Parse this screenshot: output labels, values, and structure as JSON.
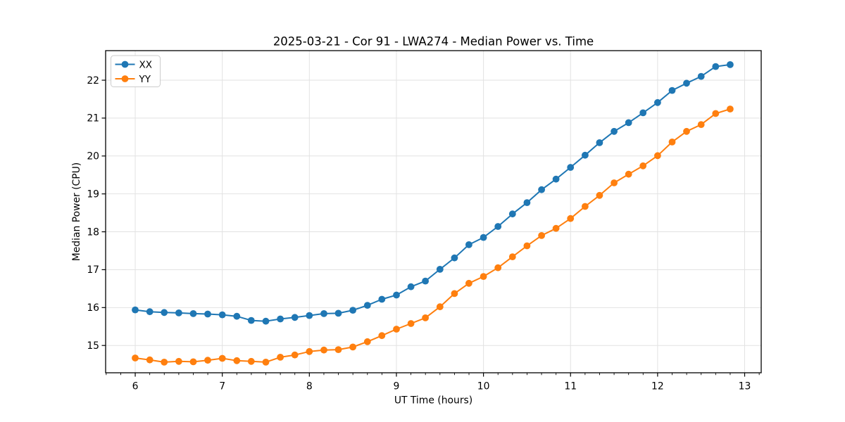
{
  "window": {
    "background": "#ffffff"
  },
  "chart_data": {
    "type": "line",
    "title": "2025-03-21 - Cor 91 - LWA274 - Median Power vs. Time",
    "xlabel": "UT Time (hours)",
    "ylabel": "Median Power (CPU)",
    "grid": "major-both",
    "grid_color": "#e2e2e2",
    "spine_color": "#000000",
    "legend": {
      "position": "upper-left",
      "entries": [
        "XX",
        "YY"
      ]
    },
    "xlim": [
      5.66,
      13.19
    ],
    "ylim": [
      14.28,
      22.78
    ],
    "xticks": [
      6,
      7,
      8,
      9,
      10,
      11,
      12,
      13
    ],
    "yticks": [
      15,
      16,
      17,
      18,
      19,
      20,
      21,
      22
    ],
    "x_minor_tick_step": 0.16667,
    "x": [
      6.0,
      6.167,
      6.333,
      6.5,
      6.667,
      6.833,
      7.0,
      7.167,
      7.333,
      7.5,
      7.667,
      7.833,
      8.0,
      8.167,
      8.333,
      8.5,
      8.667,
      8.833,
      9.0,
      9.167,
      9.333,
      9.5,
      9.667,
      9.833,
      10.0,
      10.167,
      10.333,
      10.5,
      10.667,
      10.833,
      11.0,
      11.167,
      11.333,
      11.5,
      11.667,
      11.833,
      12.0,
      12.167,
      12.333,
      12.5,
      12.667,
      12.833
    ],
    "series": [
      {
        "name": "XX",
        "color": "#1f77b4",
        "marker": "circle",
        "values": [
          15.94,
          15.89,
          15.87,
          15.86,
          15.84,
          15.83,
          15.81,
          15.77,
          15.66,
          15.64,
          15.7,
          15.74,
          15.79,
          15.84,
          15.85,
          15.93,
          16.06,
          16.22,
          16.33,
          16.55,
          16.7,
          17.01,
          17.31,
          17.66,
          17.85,
          18.14,
          18.47,
          18.77,
          19.11,
          19.39,
          19.7,
          20.02,
          20.35,
          20.65,
          20.88,
          21.14,
          21.41,
          21.73,
          21.92,
          22.1,
          22.36,
          22.41
        ]
      },
      {
        "name": "YY",
        "color": "#ff7f0e",
        "marker": "circle",
        "values": [
          14.67,
          14.62,
          14.56,
          14.58,
          14.57,
          14.61,
          14.66,
          14.6,
          14.58,
          14.56,
          14.69,
          14.75,
          14.84,
          14.88,
          14.89,
          14.96,
          15.1,
          15.26,
          15.43,
          15.58,
          15.73,
          16.02,
          16.37,
          16.64,
          16.82,
          17.05,
          17.34,
          17.63,
          17.9,
          18.09,
          18.35,
          18.67,
          18.96,
          19.29,
          19.52,
          19.74,
          20.01,
          20.37,
          20.65,
          20.83,
          21.12,
          21.24
        ]
      }
    ]
  }
}
